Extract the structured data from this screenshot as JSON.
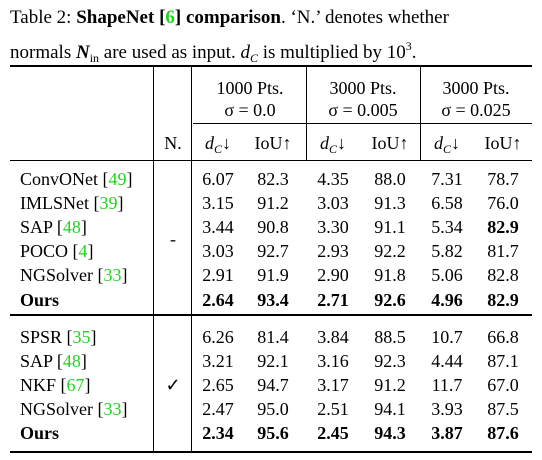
{
  "caption": {
    "lines": [
      [
        {
          "text": "Table 2: ",
          "style": "plain"
        },
        {
          "text": "ShapeNet [",
          "style": "bold"
        },
        {
          "text": "6",
          "style": "bold-ref"
        },
        {
          "text": "] comparison",
          "style": "bold"
        },
        {
          "text": ". ‘N.’ denotes whether",
          "style": "plain"
        }
      ],
      [
        {
          "text": "normals ",
          "style": "plain"
        },
        {
          "text": "N",
          "style": "bold-italic"
        },
        {
          "text": "in",
          "style": "sub"
        },
        {
          "text": " are used as input. ",
          "style": "plain"
        },
        {
          "text": "d",
          "style": "italic"
        },
        {
          "text": "C",
          "style": "italic-sub"
        },
        {
          "text": " is multiplied by 10",
          "style": "plain"
        },
        {
          "text": "3",
          "style": "sup"
        },
        {
          "text": ".",
          "style": "plain"
        }
      ]
    ]
  },
  "header": {
    "groups": [
      {
        "pts": "1000 Pts.",
        "sigma": "σ = 0.0"
      },
      {
        "pts": "3000 Pts.",
        "sigma": "σ = 0.005"
      },
      {
        "pts": "3000 Pts.",
        "sigma": "σ = 0.025"
      }
    ],
    "n_label": "N.",
    "metrics": [
      {
        "symbol": "d",
        "sub": "C",
        "arrow": "↓"
      },
      {
        "symbol": "IoU",
        "arrow": "↑"
      },
      {
        "symbol": "d",
        "sub": "C",
        "arrow": "↓"
      },
      {
        "symbol": "IoU",
        "arrow": "↑"
      },
      {
        "symbol": "d",
        "sub": "C",
        "arrow": "↓"
      },
      {
        "symbol": "IoU",
        "arrow": "↑"
      }
    ]
  },
  "groups": [
    {
      "n": "-",
      "rows": [
        {
          "method": [
            {
              "text": "ConvONet [",
              "style": "plain"
            },
            {
              "text": "49",
              "style": "ref"
            },
            {
              "text": "]",
              "style": "plain"
            }
          ],
          "values": [
            "6.07",
            "82.3",
            "4.35",
            "88.0",
            "7.31",
            "78.7"
          ],
          "bold": []
        },
        {
          "method": [
            {
              "text": "IMLSNet [",
              "style": "plain"
            },
            {
              "text": "39",
              "style": "ref"
            },
            {
              "text": "]",
              "style": "plain"
            }
          ],
          "values": [
            "3.15",
            "91.2",
            "3.03",
            "91.3",
            "6.58",
            "76.0"
          ],
          "bold": []
        },
        {
          "method": [
            {
              "text": "SAP [",
              "style": "plain"
            },
            {
              "text": "48",
              "style": "ref"
            },
            {
              "text": "]",
              "style": "plain"
            }
          ],
          "values": [
            "3.44",
            "90.8",
            "3.30",
            "91.1",
            "5.34",
            "82.9"
          ],
          "bold": [
            5
          ]
        },
        {
          "method": [
            {
              "text": "POCO [",
              "style": "plain"
            },
            {
              "text": "4",
              "style": "ref"
            },
            {
              "text": "]",
              "style": "plain"
            }
          ],
          "values": [
            "3.03",
            "92.7",
            "2.93",
            "92.2",
            "5.82",
            "81.7"
          ],
          "bold": []
        },
        {
          "method": [
            {
              "text": "NGSolver [",
              "style": "plain"
            },
            {
              "text": "33",
              "style": "ref"
            },
            {
              "text": "]",
              "style": "plain"
            }
          ],
          "values": [
            "2.91",
            "91.9",
            "2.90",
            "91.8",
            "5.06",
            "82.8"
          ],
          "bold": []
        },
        {
          "method": [
            {
              "text": "Ours",
              "style": "bold"
            }
          ],
          "values": [
            "2.64",
            "93.4",
            "2.71",
            "92.6",
            "4.96",
            "82.9"
          ],
          "bold": [
            0,
            1,
            2,
            3,
            4,
            5
          ]
        }
      ]
    },
    {
      "n": "✓",
      "rows": [
        {
          "method": [
            {
              "text": "SPSR [",
              "style": "plain"
            },
            {
              "text": "35",
              "style": "ref"
            },
            {
              "text": "]",
              "style": "plain"
            }
          ],
          "values": [
            "6.26",
            "81.4",
            "3.84",
            "88.5",
            "10.7",
            "66.8"
          ],
          "bold": []
        },
        {
          "method": [
            {
              "text": "SAP [",
              "style": "plain"
            },
            {
              "text": "48",
              "style": "ref"
            },
            {
              "text": "]",
              "style": "plain"
            }
          ],
          "values": [
            "3.21",
            "92.1",
            "3.16",
            "92.3",
            "4.44",
            "87.1"
          ],
          "bold": []
        },
        {
          "method": [
            {
              "text": "NKF [",
              "style": "plain"
            },
            {
              "text": "67",
              "style": "ref"
            },
            {
              "text": "]",
              "style": "plain"
            }
          ],
          "values": [
            "2.65",
            "94.7",
            "3.17",
            "91.2",
            "11.7",
            "67.0"
          ],
          "bold": []
        },
        {
          "method": [
            {
              "text": "NGSolver [",
              "style": "plain"
            },
            {
              "text": "33",
              "style": "ref"
            },
            {
              "text": "]",
              "style": "plain"
            }
          ],
          "values": [
            "2.47",
            "95.0",
            "2.51",
            "94.1",
            "3.93",
            "87.5"
          ],
          "bold": []
        },
        {
          "method": [
            {
              "text": "Ours",
              "style": "bold"
            }
          ],
          "values": [
            "2.34",
            "95.6",
            "2.45",
            "94.3",
            "3.87",
            "87.6"
          ],
          "bold": [
            0,
            1,
            2,
            3,
            4,
            5
          ]
        }
      ]
    }
  ]
}
